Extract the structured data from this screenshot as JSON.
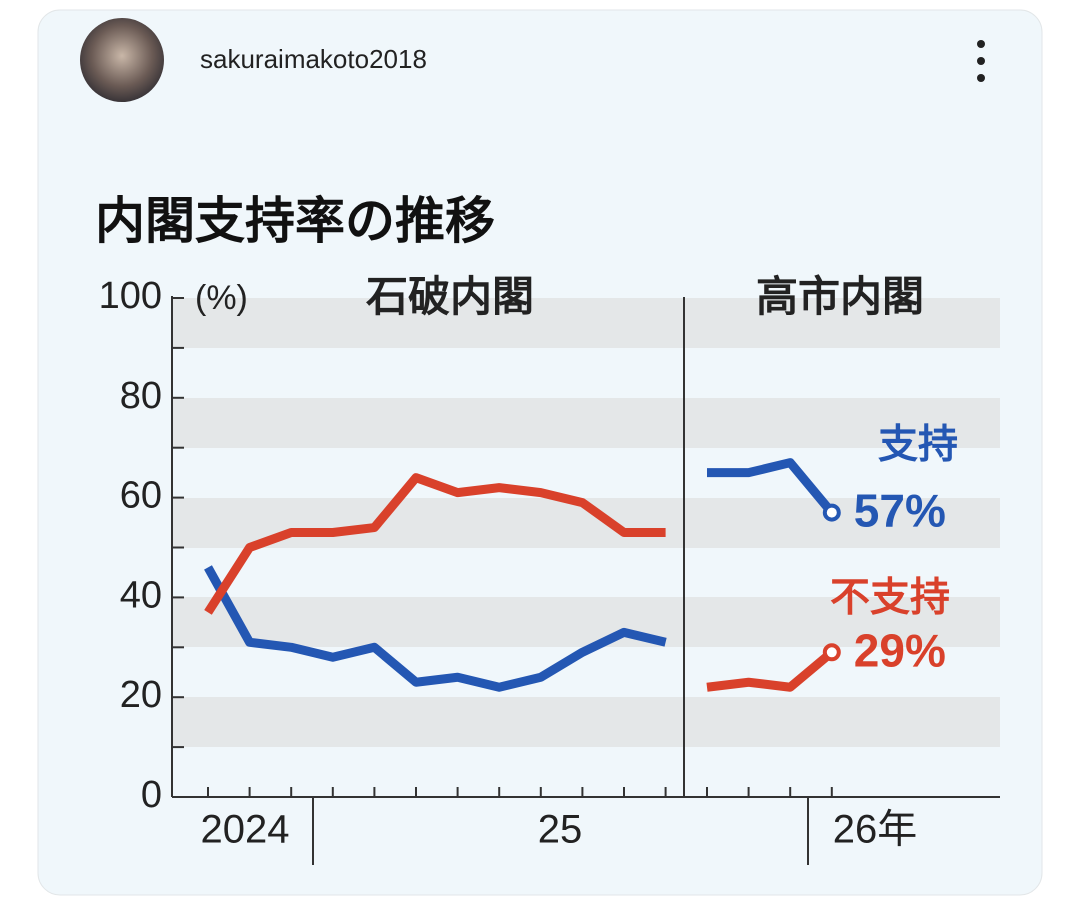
{
  "post": {
    "username": "sakuraimakoto2018"
  },
  "chart_data": [
    {
      "type": "line",
      "title": "内閣支持率の推移",
      "y_unit": "(%)",
      "panel_title": "石破内閣",
      "categories": [
        null,
        null,
        null,
        null,
        null,
        null,
        null,
        null,
        null,
        null,
        null,
        null
      ],
      "x_labels": [
        "2024",
        "25"
      ],
      "series": [
        {
          "color": "#2457b3",
          "values": [
            46,
            31,
            30,
            28,
            30,
            23,
            24,
            22,
            24,
            29,
            33,
            31
          ]
        },
        {
          "color": "#d9412b",
          "values": [
            37,
            50,
            53,
            53,
            54,
            64,
            61,
            62,
            61,
            59,
            53,
            53
          ]
        }
      ],
      "ylim": [
        0,
        100
      ],
      "yticks": [
        0,
        20,
        40,
        60,
        80,
        100
      ]
    },
    {
      "type": "line",
      "panel_title": "高市内閣",
      "categories": [
        null,
        null,
        null,
        null
      ],
      "x_labels": [
        "26年"
      ],
      "series": [
        {
          "name": "支持",
          "color": "#2457b3",
          "values": [
            65,
            65,
            67,
            57
          ],
          "value_labels": [
            null,
            null,
            null,
            "57%"
          ]
        },
        {
          "name": "不支持",
          "color": "#d9412b",
          "values": [
            22,
            23,
            22,
            29
          ],
          "value_labels": [
            null,
            null,
            null,
            "29%"
          ]
        }
      ],
      "ylim": [
        0,
        100
      ]
    }
  ]
}
